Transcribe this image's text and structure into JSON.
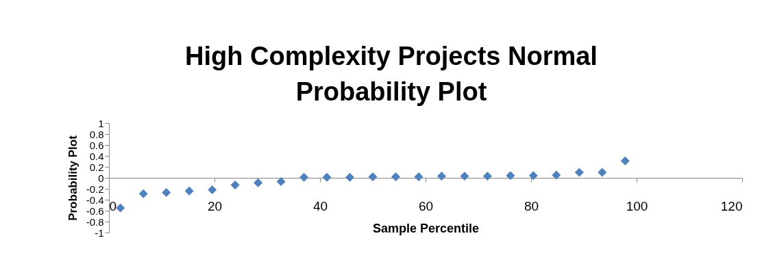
{
  "chart_data": {
    "type": "scatter",
    "title": "High Complexity Projects Normal Probability Plot",
    "xlabel": "Sample Percentile",
    "ylabel": "Probability Plot",
    "marker": "diamond",
    "grid": false,
    "x": [
      2.17,
      6.52,
      10.87,
      15.22,
      19.57,
      23.91,
      28.26,
      32.61,
      36.96,
      41.3,
      45.65,
      50,
      54.35,
      58.7,
      63.04,
      67.39,
      71.74,
      76.09,
      80.43,
      84.78,
      89.13,
      93.48,
      97.83
    ],
    "series": [
      {
        "color": "#4f81bd",
        "values": [
          -0.55,
          -0.29,
          -0.27,
          -0.24,
          -0.22,
          -0.13,
          -0.09,
          -0.07,
          0.01,
          0.01,
          0.01,
          0.02,
          0.02,
          0.02,
          0.03,
          0.03,
          0.03,
          0.04,
          0.04,
          0.05,
          0.1,
          0.1,
          0.31
        ]
      }
    ],
    "xlim": [
      0,
      120
    ],
    "xticks": [
      0,
      20,
      40,
      60,
      80,
      100,
      120
    ],
    "ylim": [
      -1,
      1
    ],
    "yticks": [
      -1,
      -0.8,
      -0.6,
      -0.4,
      -0.2,
      0,
      0.2,
      0.4,
      0.6,
      0.8,
      1
    ]
  }
}
